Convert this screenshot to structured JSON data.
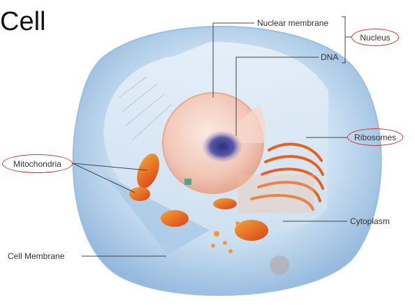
{
  "title": "Cell",
  "labels": {
    "nuclear_membrane": "Nuclear membrane",
    "nucleus": "Nucleus",
    "dna": "DNA",
    "ribosomes": "Ribosomes",
    "mitochondria": "Mitochondria",
    "cytoplasm": "Cytoplasm",
    "cell_membrane": "Cell Membrane"
  },
  "colors": {
    "highlight_circle": "#d8302f",
    "leader_line": "#444444",
    "cell_body": "#bcd6ee",
    "organelle": "#e8601c"
  }
}
